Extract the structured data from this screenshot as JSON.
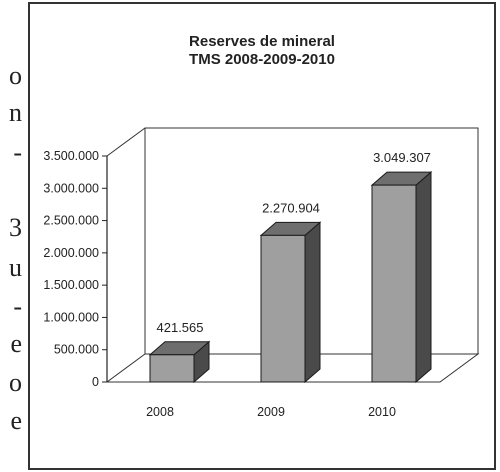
{
  "side_letters": [
    "o",
    "n",
    "-",
    "3",
    "u",
    "-",
    "e",
    "o",
    "e"
  ],
  "colors": {
    "frame": "#333333",
    "axis": "#222222",
    "bar_front": "#9f9f9f",
    "bar_top": "#6e6e6e",
    "bar_side": "#4a4a4a",
    "text": "#222222"
  },
  "chart_data": {
    "type": "bar",
    "title_lines": [
      "Reserves de mineral",
      "TMS 2008-2009-2010"
    ],
    "categories": [
      "2008",
      "2009",
      "2010"
    ],
    "values": [
      421565,
      2270904,
      3049307
    ],
    "data_labels": [
      "421.565",
      "2.270.904",
      "3.049.307"
    ],
    "yticks": [
      0,
      500000,
      1000000,
      1500000,
      2000000,
      2500000,
      3000000,
      3500000
    ],
    "ytick_labels": [
      "0",
      "500.000",
      "1.000.000",
      "1.500.000",
      "2.000.000",
      "2.500.000",
      "3.000.000",
      "3.500.000"
    ],
    "ylim": [
      0,
      3500000
    ],
    "xlabel": "",
    "ylabel": "",
    "grid": false,
    "style": "3d-column"
  }
}
